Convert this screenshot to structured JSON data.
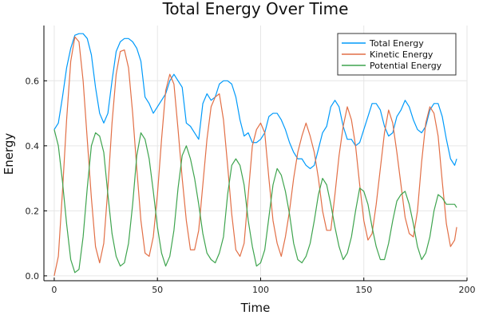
{
  "chart_data": {
    "type": "line",
    "title": "Total Energy Over Time",
    "xlabel": "Time",
    "ylabel": "Energy",
    "xlim": [
      -5,
      200
    ],
    "ylim": [
      -0.015,
      0.77
    ],
    "xticks": [
      0,
      50,
      100,
      150,
      200
    ],
    "yticks": [
      0.0,
      0.2,
      0.4,
      0.6
    ],
    "xtick_labels": [
      "0",
      "50",
      "100",
      "150",
      "200"
    ],
    "ytick_labels": [
      "0.0",
      "0.2",
      "0.4",
      "0.6"
    ],
    "grid": true,
    "legend_position": "top-right",
    "series": [
      {
        "name": "Total Energy",
        "color": "#009AFA",
        "x": [
          0,
          2,
          4,
          6,
          8,
          10,
          12,
          14,
          16,
          18,
          20,
          22,
          24,
          26,
          28,
          30,
          32,
          34,
          36,
          38,
          40,
          42,
          44,
          46,
          48,
          50,
          52,
          54,
          56,
          58,
          60,
          62,
          64,
          66,
          68,
          70,
          72,
          74,
          76,
          78,
          80,
          82,
          84,
          86,
          88,
          90,
          92,
          94,
          96,
          98,
          100,
          102,
          104,
          106,
          108,
          110,
          112,
          114,
          116,
          118,
          120,
          122,
          124,
          126,
          128,
          130,
          132,
          134,
          136,
          138,
          140,
          142,
          144,
          146,
          148,
          150,
          152,
          154,
          156,
          158,
          160,
          162,
          164,
          166,
          168,
          170,
          172,
          174,
          176,
          178,
          180,
          182,
          184,
          186,
          188,
          190,
          192,
          194,
          195
        ],
        "y": [
          0.45,
          0.47,
          0.55,
          0.64,
          0.7,
          0.74,
          0.745,
          0.745,
          0.73,
          0.68,
          0.58,
          0.5,
          0.47,
          0.5,
          0.6,
          0.69,
          0.72,
          0.73,
          0.73,
          0.72,
          0.7,
          0.66,
          0.55,
          0.53,
          0.5,
          0.52,
          0.54,
          0.56,
          0.6,
          0.62,
          0.6,
          0.58,
          0.47,
          0.46,
          0.44,
          0.42,
          0.53,
          0.56,
          0.54,
          0.55,
          0.59,
          0.6,
          0.6,
          0.59,
          0.55,
          0.48,
          0.43,
          0.44,
          0.41,
          0.41,
          0.42,
          0.44,
          0.49,
          0.5,
          0.5,
          0.48,
          0.45,
          0.41,
          0.38,
          0.36,
          0.36,
          0.34,
          0.33,
          0.34,
          0.39,
          0.44,
          0.46,
          0.52,
          0.54,
          0.52,
          0.46,
          0.42,
          0.42,
          0.4,
          0.41,
          0.45,
          0.49,
          0.53,
          0.53,
          0.51,
          0.46,
          0.43,
          0.44,
          0.49,
          0.51,
          0.54,
          0.52,
          0.48,
          0.45,
          0.44,
          0.46,
          0.51,
          0.53,
          0.53,
          0.49,
          0.42,
          0.36,
          0.34,
          0.36
        ]
      },
      {
        "name": "Kinetic Energy",
        "color": "#E26F46",
        "x": [
          0,
          2,
          4,
          6,
          8,
          10,
          12,
          14,
          16,
          18,
          20,
          22,
          24,
          26,
          28,
          30,
          32,
          34,
          36,
          38,
          40,
          42,
          44,
          46,
          48,
          50,
          52,
          54,
          56,
          58,
          60,
          62,
          64,
          66,
          68,
          70,
          72,
          74,
          76,
          78,
          80,
          82,
          84,
          86,
          88,
          90,
          92,
          94,
          96,
          98,
          100,
          102,
          104,
          106,
          108,
          110,
          112,
          114,
          116,
          118,
          120,
          122,
          124,
          126,
          128,
          130,
          132,
          134,
          136,
          138,
          140,
          142,
          144,
          146,
          148,
          150,
          152,
          154,
          156,
          158,
          160,
          162,
          164,
          166,
          168,
          170,
          172,
          174,
          176,
          178,
          180,
          182,
          184,
          186,
          188,
          190,
          192,
          194,
          195
        ],
        "y": [
          0.0,
          0.06,
          0.26,
          0.48,
          0.66,
          0.735,
          0.72,
          0.6,
          0.42,
          0.24,
          0.09,
          0.04,
          0.1,
          0.27,
          0.47,
          0.62,
          0.69,
          0.695,
          0.64,
          0.5,
          0.33,
          0.17,
          0.07,
          0.06,
          0.12,
          0.25,
          0.42,
          0.57,
          0.62,
          0.59,
          0.45,
          0.3,
          0.17,
          0.08,
          0.08,
          0.14,
          0.28,
          0.42,
          0.52,
          0.55,
          0.56,
          0.48,
          0.34,
          0.19,
          0.08,
          0.06,
          0.1,
          0.25,
          0.4,
          0.45,
          0.47,
          0.44,
          0.3,
          0.17,
          0.1,
          0.06,
          0.12,
          0.2,
          0.3,
          0.38,
          0.43,
          0.47,
          0.43,
          0.38,
          0.3,
          0.2,
          0.14,
          0.14,
          0.25,
          0.37,
          0.46,
          0.52,
          0.48,
          0.4,
          0.28,
          0.17,
          0.11,
          0.13,
          0.22,
          0.33,
          0.44,
          0.51,
          0.47,
          0.38,
          0.28,
          0.18,
          0.13,
          0.12,
          0.2,
          0.35,
          0.47,
          0.52,
          0.5,
          0.43,
          0.29,
          0.16,
          0.09,
          0.11,
          0.15
        ]
      },
      {
        "name": "Potential Energy",
        "color": "#3EA44E",
        "x": [
          0,
          2,
          4,
          6,
          8,
          10,
          12,
          14,
          16,
          18,
          20,
          22,
          24,
          26,
          28,
          30,
          32,
          34,
          36,
          38,
          40,
          42,
          44,
          46,
          48,
          50,
          52,
          54,
          56,
          58,
          60,
          62,
          64,
          66,
          68,
          70,
          72,
          74,
          76,
          78,
          80,
          82,
          84,
          86,
          88,
          90,
          92,
          94,
          96,
          98,
          100,
          102,
          104,
          106,
          108,
          110,
          112,
          114,
          116,
          118,
          120,
          122,
          124,
          126,
          128,
          130,
          132,
          134,
          136,
          138,
          140,
          142,
          144,
          146,
          148,
          150,
          152,
          154,
          156,
          158,
          160,
          162,
          164,
          166,
          168,
          170,
          172,
          174,
          176,
          178,
          180,
          182,
          184,
          186,
          188,
          190,
          192,
          194,
          195
        ],
        "y": [
          0.45,
          0.4,
          0.29,
          0.16,
          0.05,
          0.01,
          0.02,
          0.12,
          0.27,
          0.4,
          0.44,
          0.43,
          0.38,
          0.25,
          0.13,
          0.06,
          0.03,
          0.04,
          0.1,
          0.22,
          0.37,
          0.44,
          0.42,
          0.36,
          0.26,
          0.15,
          0.07,
          0.03,
          0.06,
          0.14,
          0.27,
          0.37,
          0.4,
          0.36,
          0.3,
          0.22,
          0.13,
          0.07,
          0.05,
          0.04,
          0.07,
          0.12,
          0.25,
          0.34,
          0.36,
          0.34,
          0.28,
          0.17,
          0.09,
          0.03,
          0.04,
          0.08,
          0.18,
          0.28,
          0.33,
          0.31,
          0.26,
          0.19,
          0.1,
          0.05,
          0.04,
          0.06,
          0.1,
          0.17,
          0.25,
          0.3,
          0.28,
          0.22,
          0.15,
          0.09,
          0.05,
          0.07,
          0.12,
          0.2,
          0.27,
          0.26,
          0.22,
          0.15,
          0.09,
          0.05,
          0.05,
          0.1,
          0.17,
          0.23,
          0.25,
          0.26,
          0.22,
          0.16,
          0.09,
          0.05,
          0.07,
          0.12,
          0.2,
          0.25,
          0.24,
          0.22,
          0.22,
          0.22,
          0.21
        ]
      }
    ]
  }
}
